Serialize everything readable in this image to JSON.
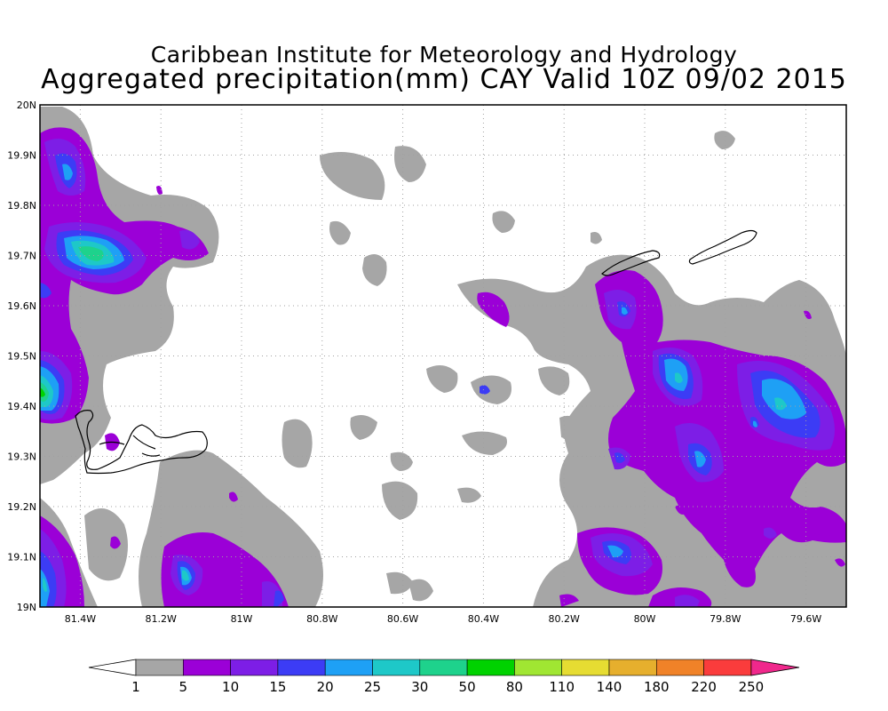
{
  "title": {
    "line1": "Caribbean Institute for Meteorology and Hydrology",
    "line2": "Aggregated precipitation(mm) CAY Valid 10Z 09/02 2015"
  },
  "axes": {
    "lat_labels": [
      "20N",
      "19.9N",
      "19.8N",
      "19.7N",
      "19.6N",
      "19.5N",
      "19.4N",
      "19.3N",
      "19.2N",
      "19.1N",
      "19N"
    ],
    "lon_labels": [
      "81.4W",
      "81.2W",
      "81W",
      "80.8W",
      "80.6W",
      "80.4W",
      "80.2W",
      "80W",
      "79.8W",
      "79.6W"
    ],
    "lat_range": [
      19.0,
      20.0
    ],
    "lon_range": [
      -81.5,
      -79.5
    ],
    "grid": "dotted"
  },
  "colorbar": {
    "labels": [
      "1",
      "5",
      "10",
      "15",
      "20",
      "25",
      "30",
      "50",
      "80",
      "110",
      "140",
      "180",
      "220",
      "250"
    ],
    "colors": [
      "#a6a6a6",
      "#9b00d7",
      "#7d1ee6",
      "#3c3cf5",
      "#1ea0f5",
      "#1ec8c8",
      "#1ed28c",
      "#00d200",
      "#a0e632",
      "#e6dc32",
      "#e6af2d",
      "#f08228",
      "#fa3c3c",
      "#f0288c"
    ],
    "underflow_color": "#ffffff",
    "overflow_color": "#f0288c"
  },
  "colors": {
    "land_outline": "#000000",
    "frame": "#000000",
    "grid": "#a0a0a0"
  }
}
